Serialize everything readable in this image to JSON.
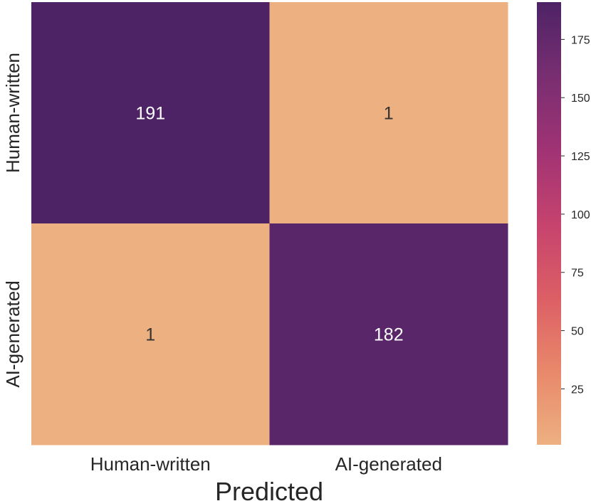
{
  "chart_data": {
    "type": "heatmap",
    "title": "",
    "xlabel": "Predicted",
    "ylabel": "",
    "x_categories": [
      "Human-written",
      "AI-generated"
    ],
    "y_categories": [
      "Human-written",
      "AI-generated"
    ],
    "values": [
      [
        191,
        1
      ],
      [
        1,
        182
      ]
    ],
    "annotation_text": [
      [
        "191",
        "1"
      ],
      [
        "1",
        "182"
      ]
    ],
    "colorbar": {
      "vmin": 1,
      "vmax": 191,
      "ticks": [
        25,
        50,
        75,
        100,
        125,
        150,
        175
      ],
      "tick_labels": [
        "25",
        "50",
        "75",
        "100",
        "125",
        "150",
        "175"
      ],
      "colormap": [
        "#edb081",
        "#e8886a",
        "#dc5e65",
        "#c5436e",
        "#a03374",
        "#782e71",
        "#4d2366"
      ]
    },
    "colors": {
      "high": "#4d2366",
      "low": "#edb081",
      "annotation_dark": "#333333",
      "annotation_light": "#ffffff"
    },
    "grid": false
  }
}
